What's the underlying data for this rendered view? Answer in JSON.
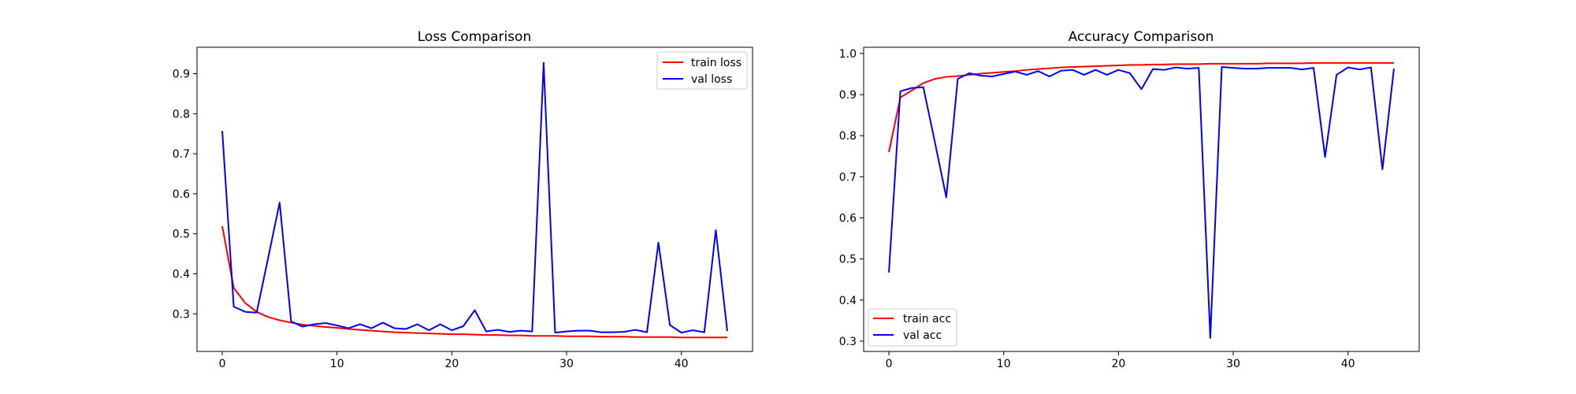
{
  "figure": {
    "background": "#ffffff"
  },
  "chart_data": [
    {
      "id": "loss",
      "type": "line",
      "title": "Loss Comparison",
      "xlabel": "",
      "ylabel": "",
      "xlim": [
        -2.2,
        46.2
      ],
      "ylim": [
        0.206,
        0.966
      ],
      "xticks": [
        0,
        10,
        20,
        30,
        40
      ],
      "yticks": [
        0.3,
        0.4,
        0.5,
        0.6,
        0.7,
        0.8,
        0.9
      ],
      "grid": false,
      "legend": {
        "position": "top-right",
        "entries": [
          "train loss",
          "val loss"
        ]
      },
      "x": [
        0,
        1,
        2,
        3,
        4,
        5,
        6,
        7,
        8,
        9,
        10,
        11,
        12,
        13,
        14,
        15,
        16,
        17,
        18,
        19,
        20,
        21,
        22,
        23,
        24,
        25,
        26,
        27,
        28,
        29,
        30,
        31,
        32,
        33,
        34,
        35,
        36,
        37,
        38,
        39,
        40,
        41,
        42,
        43,
        44
      ],
      "series": [
        {
          "name": "train loss",
          "color": "#ff0000",
          "values": [
            0.519,
            0.365,
            0.327,
            0.305,
            0.292,
            0.284,
            0.278,
            0.273,
            0.27,
            0.267,
            0.265,
            0.262,
            0.26,
            0.258,
            0.256,
            0.254,
            0.253,
            0.252,
            0.251,
            0.25,
            0.249,
            0.249,
            0.248,
            0.247,
            0.247,
            0.246,
            0.246,
            0.245,
            0.245,
            0.245,
            0.244,
            0.244,
            0.244,
            0.243,
            0.243,
            0.243,
            0.242,
            0.242,
            0.242,
            0.242,
            0.241,
            0.241,
            0.241,
            0.241,
            0.241
          ]
        },
        {
          "name": "val loss",
          "color": "#0000ff",
          "values": [
            0.757,
            0.318,
            0.305,
            0.303,
            0.44,
            0.578,
            0.281,
            0.268,
            0.274,
            0.277,
            0.271,
            0.264,
            0.274,
            0.264,
            0.278,
            0.264,
            0.262,
            0.274,
            0.259,
            0.274,
            0.259,
            0.269,
            0.309,
            0.256,
            0.26,
            0.255,
            0.258,
            0.256,
            0.927,
            0.253,
            0.256,
            0.258,
            0.258,
            0.254,
            0.254,
            0.255,
            0.26,
            0.254,
            0.478,
            0.272,
            0.253,
            0.259,
            0.254,
            0.509,
            0.257
          ]
        }
      ]
    },
    {
      "id": "accuracy",
      "type": "line",
      "title": "Accuracy Comparison",
      "xlabel": "",
      "ylabel": "",
      "xlim": [
        -2.2,
        46.2
      ],
      "ylim": [
        0.275,
        1.015
      ],
      "xticks": [
        0,
        10,
        20,
        30,
        40
      ],
      "yticks": [
        0.3,
        0.4,
        0.5,
        0.6,
        0.7,
        0.8,
        0.9,
        1.0
      ],
      "grid": false,
      "legend": {
        "position": "bottom-left",
        "entries": [
          "train acc",
          "val acc"
        ]
      },
      "x": [
        0,
        1,
        2,
        3,
        4,
        5,
        6,
        7,
        8,
        9,
        10,
        11,
        12,
        13,
        14,
        15,
        16,
        17,
        18,
        19,
        20,
        21,
        22,
        23,
        24,
        25,
        26,
        27,
        28,
        29,
        30,
        31,
        32,
        33,
        34,
        35,
        36,
        37,
        38,
        39,
        40,
        41,
        42,
        43,
        44
      ],
      "series": [
        {
          "name": "train acc",
          "color": "#ff0000",
          "values": [
            0.76,
            0.893,
            0.91,
            0.928,
            0.938,
            0.943,
            0.945,
            0.948,
            0.951,
            0.953,
            0.955,
            0.957,
            0.96,
            0.962,
            0.964,
            0.966,
            0.967,
            0.968,
            0.969,
            0.97,
            0.971,
            0.972,
            0.972,
            0.973,
            0.973,
            0.974,
            0.974,
            0.974,
            0.975,
            0.975,
            0.975,
            0.975,
            0.975,
            0.976,
            0.976,
            0.976,
            0.976,
            0.977,
            0.977,
            0.977,
            0.977,
            0.977,
            0.977,
            0.977,
            0.977
          ]
        },
        {
          "name": "val acc",
          "color": "#0000ff",
          "values": [
            0.467,
            0.908,
            0.916,
            0.918,
            0.785,
            0.65,
            0.938,
            0.952,
            0.946,
            0.944,
            0.95,
            0.956,
            0.948,
            0.957,
            0.944,
            0.958,
            0.96,
            0.948,
            0.96,
            0.948,
            0.96,
            0.952,
            0.913,
            0.962,
            0.96,
            0.966,
            0.963,
            0.965,
            0.308,
            0.967,
            0.965,
            0.963,
            0.963,
            0.965,
            0.965,
            0.965,
            0.961,
            0.965,
            0.748,
            0.948,
            0.966,
            0.961,
            0.966,
            0.718,
            0.963
          ]
        }
      ]
    }
  ]
}
